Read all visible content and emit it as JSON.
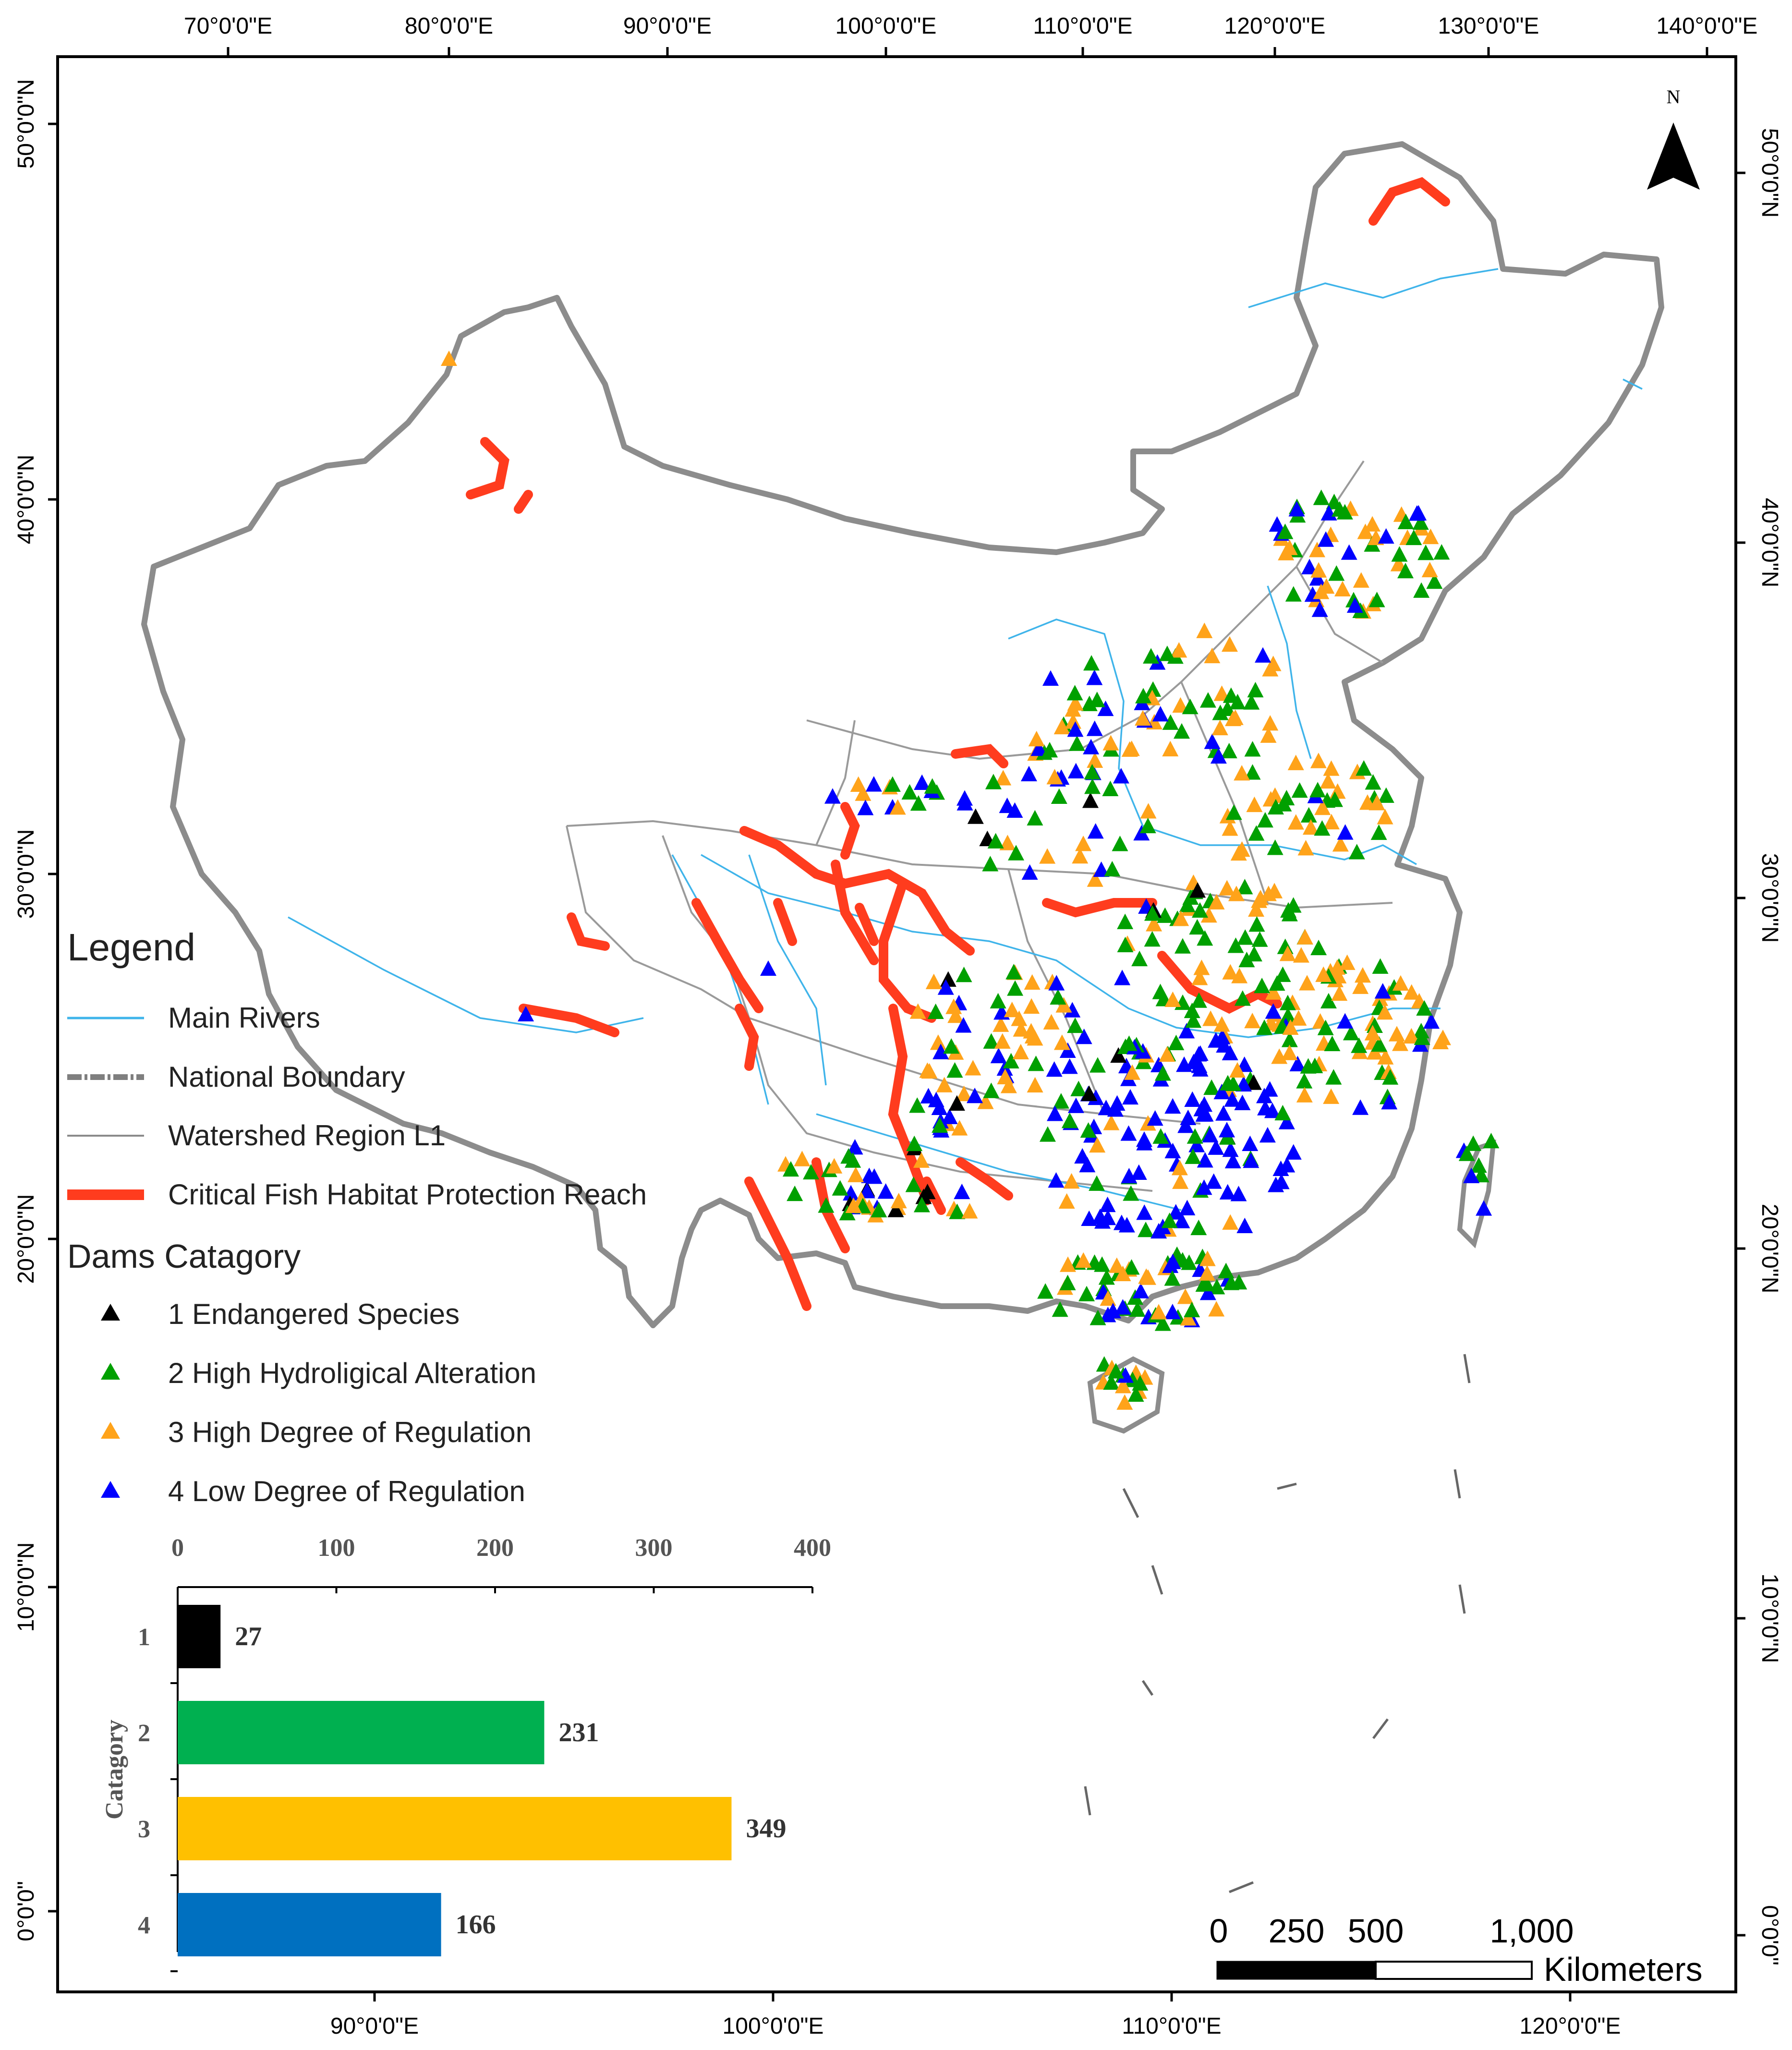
{
  "grid": {
    "top_labels": [
      "70°0'0\"E",
      "80°0'0\"E",
      "90°0'0\"E",
      "100°0'0\"E",
      "110°0'0\"E",
      "120°0'0\"E",
      "130°0'0\"E",
      "140°0'0\"E"
    ],
    "bottom_labels": [
      "90°0'0\"E",
      "100°0'0\"E",
      "110°0'0\"E",
      "120°0'0\"E"
    ],
    "left_labels": [
      "50°0'0\"N",
      "40°0'0\"N",
      "30°0'0\"N",
      "20°0'0\"N",
      "10°0'0\"N",
      "0°0'0\""
    ],
    "right_labels": [
      "50°0'0\"N",
      "40°0'0\"N",
      "30°0'0\"N",
      "20°0'0\"N",
      "10°0'0\"N",
      "0°0'0\""
    ]
  },
  "north_arrow": {
    "label": "N"
  },
  "legend": {
    "title": "Legend",
    "items": [
      {
        "label": "Main Rivers",
        "color": "#3fb4ea"
      },
      {
        "label": "National Boundary",
        "color": "#7f7f7f"
      },
      {
        "label": "Watershed Region L1",
        "color": "#8a8a8a"
      },
      {
        "label": "Critical Fish Habitat Protection Reach",
        "color": "#ff3c1e"
      }
    ],
    "dams_title": "Dams Catagory",
    "dams": [
      {
        "label": "1 Endangered Species",
        "color": "#000000"
      },
      {
        "label": "2 High Hydroligical Alteration",
        "color": "#00a000"
      },
      {
        "label": "3 High Degree of Regulation",
        "color": "#ffa31a"
      },
      {
        "label": "4 Low Degree of Regulation",
        "color": "#0000ff"
      }
    ]
  },
  "scale_bar": {
    "ticks": [
      "0",
      "250",
      "500",
      "1,000"
    ],
    "unit": "Kilometers"
  },
  "chart_data": {
    "type": "bar",
    "orientation": "horizontal",
    "categories": [
      "1",
      "2",
      "3",
      "4"
    ],
    "values": [
      27,
      231,
      349,
      166
    ],
    "colors": [
      "#000000",
      "#00b050",
      "#ffc000",
      "#0070c0"
    ],
    "ylabel": "Catagory",
    "xlim": [
      0,
      400
    ],
    "xticks": [
      "0",
      "100",
      "200",
      "300",
      "400"
    ]
  }
}
